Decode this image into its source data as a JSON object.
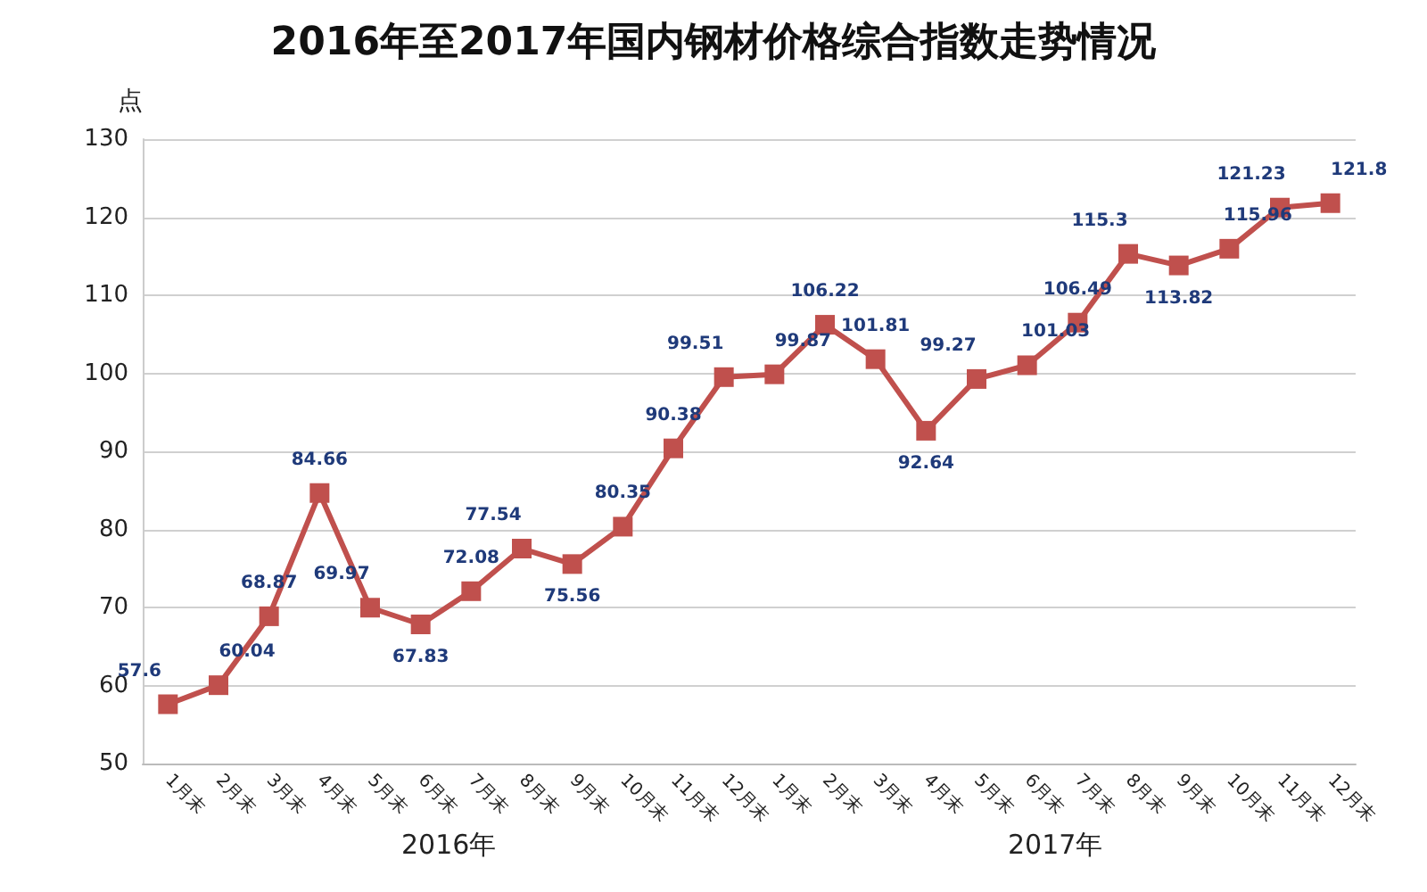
{
  "chart_data": {
    "type": "line",
    "title": "2016年至2017年国内钢材价格综合指数走势情况",
    "ylabel": "点",
    "categories": [
      "1月末",
      "2月末",
      "3月末",
      "4月末",
      "5月末",
      "6月末",
      "7月末",
      "8月末",
      "9月末",
      "10月末",
      "11月末",
      "12月末",
      "1月末",
      "2月末",
      "3月末",
      "4月末",
      "5月末",
      "6月末",
      "7月末",
      "8月末",
      "9月末",
      "10月末",
      "11月末",
      "12月末"
    ],
    "series": [
      {
        "color": "#c0504d",
        "values": [
          57.6,
          60.04,
          68.87,
          84.66,
          69.97,
          67.83,
          72.08,
          77.54,
          75.56,
          80.35,
          90.38,
          99.51,
          99.87,
          106.22,
          101.81,
          92.64,
          99.27,
          101.03,
          106.49,
          115.3,
          113.82,
          115.96,
          121.23,
          121.8
        ]
      }
    ],
    "annotations": [
      "2016年",
      "2017年"
    ],
    "ylim": [
      50,
      130
    ],
    "yticks": [
      50,
      60,
      70,
      80,
      90,
      100,
      110,
      120,
      130
    ],
    "grid": "y",
    "marker": "square",
    "line_style": "solid",
    "data_labels": true
  }
}
